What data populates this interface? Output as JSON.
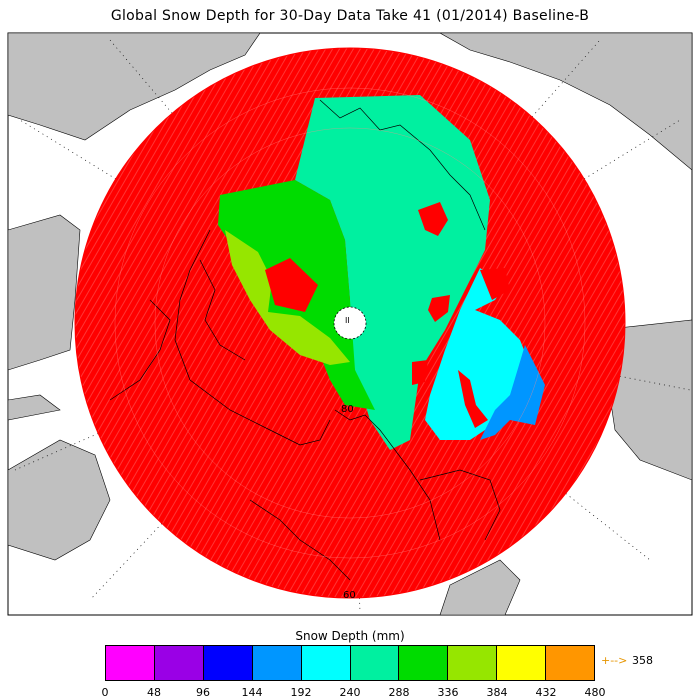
{
  "title": "Global Snow Depth for 30-Day Data Take 41 (01/2014) Baseline-B",
  "legend": {
    "title": "Snow Depth (mm)",
    "ticks": [
      "0",
      "48",
      "96",
      "144",
      "192",
      "240",
      "288",
      "336",
      "384",
      "432",
      "480"
    ],
    "colors": [
      "#ff00ff",
      "#9a00e6",
      "#0000ff",
      "#0096ff",
      "#00ffff",
      "#00f0a0",
      "#00dc00",
      "#96e600",
      "#ffff00",
      "#ff9600"
    ],
    "mean_marker": "+-->",
    "mean_value": "358"
  },
  "map": {
    "projection": "north-polar-stereographic",
    "latitude_labels": [
      "80",
      "60"
    ],
    "background_color": "#ffffff",
    "land_color": "#c0c0c0",
    "dominant_region_color": "#ff0000",
    "pole_marker": "II"
  }
}
